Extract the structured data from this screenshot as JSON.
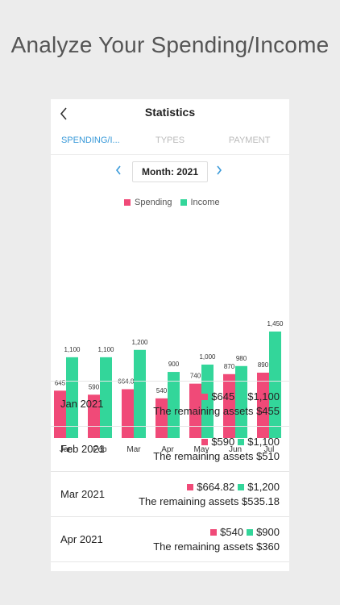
{
  "headline": "Analyze Your Spending/Income",
  "header": {
    "title": "Statistics"
  },
  "tabs": [
    {
      "label": "SPENDING/I...",
      "active": true
    },
    {
      "label": "TYPES",
      "active": false
    },
    {
      "label": "PAYMENT",
      "active": false
    }
  ],
  "month": {
    "label": "Month: 2021"
  },
  "legend": {
    "spending": "Spending",
    "income": "Income"
  },
  "colors": {
    "spending": "#f04a78",
    "income": "#33d69a",
    "accent": "#3a9ad9"
  },
  "chart_data": {
    "type": "bar",
    "categories": [
      "Jan",
      "Feb",
      "Mar",
      "Apr",
      "May",
      "Jun",
      "Jul"
    ],
    "series": [
      {
        "name": "Spending",
        "values": [
          645,
          590,
          664.82,
          540,
          740,
          870,
          890
        ],
        "labels": [
          "645",
          "590",
          "664.82",
          "540",
          "740",
          "870",
          "890"
        ]
      },
      {
        "name": "Income",
        "values": [
          1100,
          1100,
          1200,
          900,
          1000,
          980,
          1450
        ],
        "labels": [
          "1,100",
          "1,100",
          "1,200",
          "900",
          "1,000",
          "980",
          "1,450"
        ]
      }
    ],
    "ylim": [
      0,
      1450
    ]
  },
  "list": [
    {
      "label": "Jan 2021",
      "spending": "$645",
      "income": "$1,100",
      "remaining": "The remaining assets $455"
    },
    {
      "label": "Feb 2021",
      "spending": "$590",
      "income": "$1,100",
      "remaining": "The remaining assets $510"
    },
    {
      "label": "Mar 2021",
      "spending": "$664.82",
      "income": "$1,200",
      "remaining": "The remaining assets $535.18"
    },
    {
      "label": "Apr 2021",
      "spending": "$540",
      "income": "$900",
      "remaining": "The remaining assets $360"
    }
  ]
}
